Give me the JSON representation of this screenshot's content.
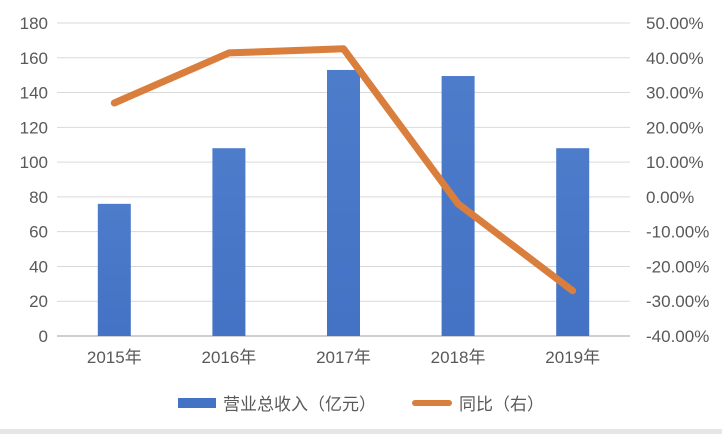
{
  "chart_data": {
    "type": "combo",
    "title": "",
    "categories": [
      "2015年",
      "2016年",
      "2017年",
      "2018年",
      "2019年"
    ],
    "series": [
      {
        "name": "营业总收入（亿元）",
        "type": "bar",
        "axis": "left",
        "values": [
          76,
          108,
          153,
          149.5,
          108
        ]
      },
      {
        "name": "同比（右）",
        "type": "line",
        "axis": "right",
        "unit": "%",
        "values": [
          27,
          41.4,
          42.6,
          -2,
          -27
        ]
      }
    ],
    "left_axis": {
      "min": 0,
      "max": 180,
      "ticks": [
        "180",
        "160",
        "140",
        "120",
        "100",
        "80",
        "60",
        "40",
        "20",
        "0"
      ]
    },
    "right_axis": {
      "min": -40,
      "max": 50,
      "ticks": [
        "50.00%",
        "40.00%",
        "30.00%",
        "20.00%",
        "10.00%",
        "0.00%",
        "-10.00%",
        "-20.00%",
        "-30.00%",
        "-40.00%"
      ]
    },
    "grid": true,
    "legend_position": "bottom"
  },
  "legend": {
    "bar_label": "营业总收入（亿元）",
    "line_label": "同比（右）"
  },
  "colors": {
    "bar": "#4472c4",
    "bar_light": "#4d7ccb",
    "line": "#d97e3c",
    "grid": "#d9d9d9",
    "axis_line": "#bfbfbf",
    "text": "#595959",
    "bottom_strip": "#e6e6e6"
  }
}
